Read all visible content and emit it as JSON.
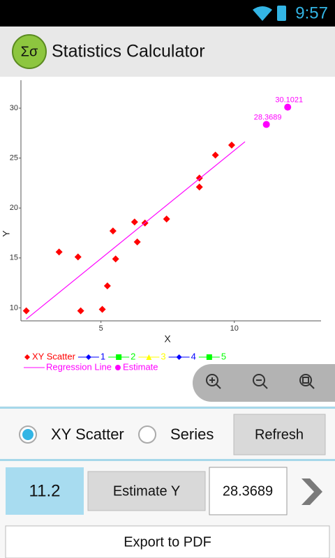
{
  "status_bar": {
    "time": "9:57"
  },
  "app_bar": {
    "title": "Statistics Calculator",
    "icon_text": "Σσ"
  },
  "chart_data": {
    "type": "scatter",
    "x_label": "X",
    "y_label": "Y",
    "xlim": [
      2,
      13.25
    ],
    "ylim": [
      8.7,
      32.8
    ],
    "xticks": [
      5,
      10
    ],
    "yticks": [
      10,
      15,
      20,
      25,
      30
    ],
    "grid": false,
    "series": [
      {
        "name": "XY Scatter",
        "color": "#ff0000",
        "marker": "diamond",
        "line": false,
        "x": [
          2.2,
          3.43,
          4.14,
          4.24,
          5.05,
          5.24,
          5.45,
          5.55,
          6.26,
          6.36,
          6.65,
          7.46,
          8.69,
          8.69,
          9.29,
          9.9
        ],
        "values": [
          9.7,
          15.6,
          15.1,
          9.7,
          9.85,
          12.2,
          17.7,
          14.9,
          18.6,
          16.6,
          18.5,
          18.9,
          23.0,
          22.1,
          25.3,
          26.3
        ]
      },
      {
        "name": "1",
        "color": "#0000ff",
        "marker": "diamond",
        "line": true,
        "x": [],
        "values": []
      },
      {
        "name": "2",
        "color": "#00ff00",
        "marker": "square",
        "line": true,
        "x": [],
        "values": []
      },
      {
        "name": "3",
        "color": "#ffff00",
        "marker": "triangle",
        "line": true,
        "x": [],
        "values": []
      },
      {
        "name": "4",
        "color": "#0000ff",
        "marker": "diamond",
        "line": true,
        "x": [],
        "values": []
      },
      {
        "name": "5",
        "color": "#00ff00",
        "marker": "square",
        "line": true,
        "x": [],
        "values": []
      },
      {
        "name": "Regression Line",
        "color": "#ff00ff",
        "marker": "none",
        "line": true,
        "x": [
          2.2,
          10.4
        ],
        "values": [
          8.87,
          26.64
        ]
      },
      {
        "name": "Estimate",
        "color": "#ff00ff",
        "marker": "circle",
        "line": false,
        "data_labels": true,
        "x": [
          11.2,
          12
        ],
        "values": [
          28.3689,
          30.1021
        ]
      }
    ]
  },
  "controls": {
    "mode_options": [
      {
        "label": "XY Scatter",
        "selected": true
      },
      {
        "label": "Series",
        "selected": false
      }
    ],
    "refresh_button": "Refresh",
    "x_input": "11.2",
    "estimate_button": "Estimate Y",
    "estimate_output": "28.3689",
    "export_button": "Export to PDF"
  }
}
